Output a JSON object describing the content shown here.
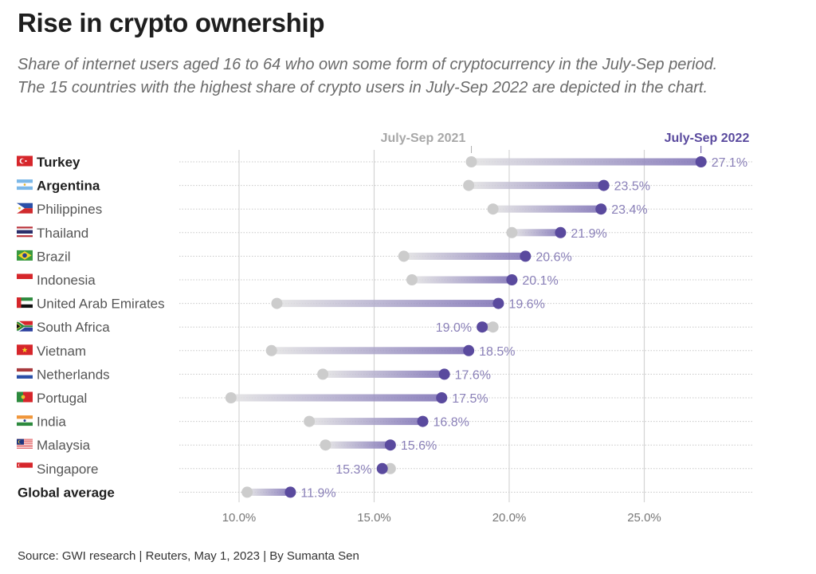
{
  "header": {
    "title": "Rise in crypto ownership",
    "subtitle_line1": "Share of internet users aged 16 to 64 who own some form of cryptocurrency in the July-Sep period.",
    "subtitle_line2": "The 15 countries with the highest share of crypto users in July-Sep 2022 are depicted in the chart."
  },
  "footer": {
    "source": "Source: GWI research | Reuters, May 1, 2023 | By Sumanta Sen"
  },
  "colors": {
    "series_2021": "#cccccc",
    "series_2022": "#5a4a9e",
    "value_label": "#8a80b8",
    "gridline": "#d4d4d4"
  },
  "chart_data": {
    "type": "dumbbell",
    "title": "Rise in crypto ownership",
    "xlabel": "",
    "ylabel": "",
    "xlim": [
      8.0,
      28.0
    ],
    "x_ticks": [
      10,
      15,
      20,
      25
    ],
    "x_tick_labels": [
      "10.0%",
      "15.0%",
      "20.0%",
      "25.0%"
    ],
    "grid": true,
    "legend": {
      "placement": "top",
      "entries": [
        {
          "name": "July-Sep 2021",
          "color": "#a8a8a8"
        },
        {
          "name": "July-Sep 2022",
          "color": "#5a4a9e"
        }
      ]
    },
    "series_names": [
      "July-Sep 2021",
      "July-Sep 2022"
    ],
    "rows": [
      {
        "label": "Turkey",
        "flag": "turkey-flag",
        "bold": true,
        "v2021": 18.6,
        "v2022": 27.1,
        "label_2022": "27.1%"
      },
      {
        "label": "Argentina",
        "flag": "argentina-flag",
        "bold": true,
        "v2021": 18.5,
        "v2022": 23.5,
        "label_2022": "23.5%"
      },
      {
        "label": "Philippines",
        "flag": "philippines-flag",
        "bold": false,
        "v2021": 19.4,
        "v2022": 23.4,
        "label_2022": "23.4%"
      },
      {
        "label": "Thailand",
        "flag": "thailand-flag",
        "bold": false,
        "v2021": 20.1,
        "v2022": 21.9,
        "label_2022": "21.9%"
      },
      {
        "label": "Brazil",
        "flag": "brazil-flag",
        "bold": false,
        "v2021": 16.1,
        "v2022": 20.6,
        "label_2022": "20.6%"
      },
      {
        "label": "Indonesia",
        "flag": "indonesia-flag",
        "bold": false,
        "v2021": 16.4,
        "v2022": 20.1,
        "label_2022": "20.1%"
      },
      {
        "label": "United Arab Emirates",
        "flag": "uae-flag",
        "bold": false,
        "v2021": 11.4,
        "v2022": 19.6,
        "label_2022": "19.6%"
      },
      {
        "label": "South Africa",
        "flag": "south-africa-flag",
        "bold": false,
        "v2021": 19.4,
        "v2022": 19.0,
        "label_2022": "19.0%"
      },
      {
        "label": "Vietnam",
        "flag": "vietnam-flag",
        "bold": false,
        "v2021": 11.2,
        "v2022": 18.5,
        "label_2022": "18.5%"
      },
      {
        "label": "Netherlands",
        "flag": "netherlands-flag",
        "bold": false,
        "v2021": 13.1,
        "v2022": 17.6,
        "label_2022": "17.6%"
      },
      {
        "label": "Portugal",
        "flag": "portugal-flag",
        "bold": false,
        "v2021": 9.7,
        "v2022": 17.5,
        "label_2022": "17.5%"
      },
      {
        "label": "India",
        "flag": "india-flag",
        "bold": false,
        "v2021": 12.6,
        "v2022": 16.8,
        "label_2022": "16.8%"
      },
      {
        "label": "Malaysia",
        "flag": "malaysia-flag",
        "bold": false,
        "v2021": 13.2,
        "v2022": 15.6,
        "label_2022": "15.6%"
      },
      {
        "label": "Singapore",
        "flag": "singapore-flag",
        "bold": false,
        "v2021": 15.6,
        "v2022": 15.3,
        "label_2022": "15.3%"
      },
      {
        "label": "Global average",
        "flag": null,
        "bold": true,
        "v2021": 10.3,
        "v2022": 11.9,
        "label_2022": "11.9%"
      }
    ]
  }
}
